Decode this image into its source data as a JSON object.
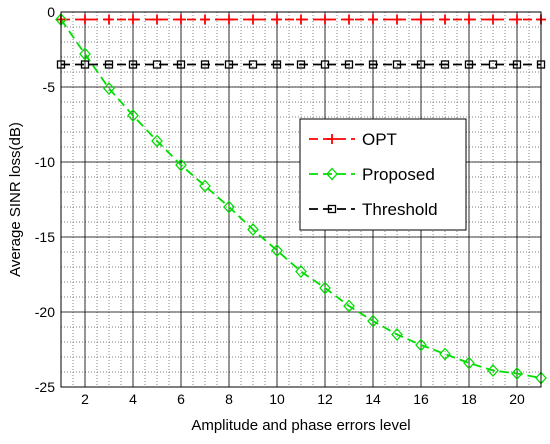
{
  "chart_data": {
    "type": "line",
    "title": "",
    "xlabel": "Amplitude and phase errors level",
    "ylabel": "Average SINR loss(dB)",
    "xlim": [
      1,
      21
    ],
    "ylim": [
      -25,
      0
    ],
    "xticks": [
      2,
      4,
      6,
      8,
      10,
      12,
      14,
      16,
      18,
      20
    ],
    "yticks": [
      0,
      -5,
      -10,
      -15,
      -20,
      -25
    ],
    "grid": true,
    "legend_position": "center-right",
    "x": [
      1,
      2,
      3,
      4,
      5,
      6,
      7,
      8,
      9,
      10,
      11,
      12,
      13,
      14,
      15,
      16,
      17,
      18,
      19,
      20,
      21
    ],
    "series": [
      {
        "name": "OPT",
        "color": "#ff0000",
        "marker": "plus",
        "line_style": "dashed",
        "values": [
          -0.5,
          -0.5,
          -0.5,
          -0.5,
          -0.5,
          -0.5,
          -0.5,
          -0.5,
          -0.5,
          -0.5,
          -0.5,
          -0.5,
          -0.5,
          -0.5,
          -0.5,
          -0.5,
          -0.5,
          -0.5,
          -0.5,
          -0.5,
          -0.5
        ]
      },
      {
        "name": "Proposed",
        "color": "#00dd00",
        "marker": "diamond",
        "line_style": "dashed",
        "values": [
          -0.5,
          -2.8,
          -5.1,
          -6.9,
          -8.6,
          -10.2,
          -11.6,
          -13.0,
          -14.5,
          -15.9,
          -17.3,
          -18.4,
          -19.6,
          -20.6,
          -21.5,
          -22.2,
          -22.8,
          -23.4,
          -23.9,
          -24.1,
          -24.4
        ]
      },
      {
        "name": "Threshold",
        "color": "#000000",
        "marker": "square",
        "line_style": "dashed",
        "values": [
          -3.5,
          -3.5,
          -3.5,
          -3.5,
          -3.5,
          -3.5,
          -3.5,
          -3.5,
          -3.5,
          -3.5,
          -3.5,
          -3.5,
          -3.5,
          -3.5,
          -3.5,
          -3.5,
          -3.5,
          -3.5,
          -3.5,
          -3.5,
          -3.5
        ]
      }
    ]
  }
}
